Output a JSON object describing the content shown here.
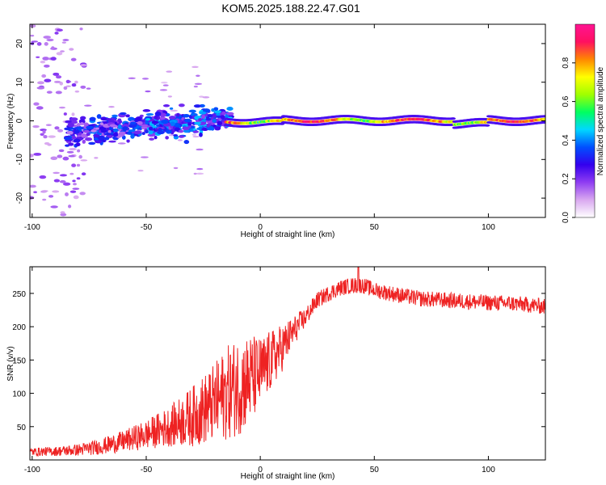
{
  "title": "KOM5.2025.188.22.47.G01",
  "chart_data": [
    {
      "type": "heatmap",
      "xlabel": "Height of straight line (km)",
      "ylabel": "Frequency (Hz)",
      "xlim": [
        -101,
        125
      ],
      "ylim": [
        -25,
        25
      ],
      "xticks": [
        -100,
        -50,
        0,
        50,
        100
      ],
      "yticks": [
        -20,
        -10,
        0,
        10,
        20
      ],
      "colorbar": {
        "label": "Normalized spectral amplitude",
        "range": [
          0.0,
          1.0
        ],
        "ticks": [
          0.0,
          0.2,
          0.4,
          0.6,
          0.8
        ],
        "colormap": [
          "#ffffff",
          "#d9a8f0",
          "#8f3df2",
          "#3300ee",
          "#0050ff",
          "#00d8ff",
          "#00ff60",
          "#a0ff00",
          "#ffff00",
          "#ff8800",
          "#ff1060",
          "#ff1493"
        ]
      },
      "features": [
        {
          "x_range": [
            -101,
            -80
          ],
          "frequency_spread_hz": [
            -25,
            25
          ],
          "amplitude": 0.15,
          "description_key": "scattered weak"
        },
        {
          "x_range": [
            -80,
            -15
          ],
          "frequency_spread_hz": [
            -8,
            4
          ],
          "amplitude": 0.25
        },
        {
          "x_range": [
            -15,
            125
          ],
          "frequency_center_hz": 0,
          "amplitude": 0.7
        }
      ]
    },
    {
      "type": "line",
      "xlabel": "Height of straight line (km)",
      "ylabel": "SNR (v/v)",
      "xlim": [
        -101,
        125
      ],
      "ylim": [
        0,
        290
      ],
      "xticks": [
        -100,
        -50,
        0,
        50,
        100
      ],
      "yticks": [
        50,
        100,
        150,
        200,
        250
      ],
      "color": "#ee2222",
      "envelope": {
        "x": [
          -101,
          -90,
          -80,
          -70,
          -60,
          -50,
          -40,
          -30,
          -20,
          -15,
          -10,
          -5,
          0,
          5,
          10,
          15,
          20,
          25,
          30,
          35,
          40,
          45,
          50,
          60,
          70,
          80,
          90,
          100,
          110,
          120,
          125
        ],
        "mean": [
          12,
          13,
          15,
          20,
          28,
          38,
          50,
          65,
          85,
          100,
          110,
          120,
          130,
          150,
          170,
          195,
          215,
          240,
          250,
          258,
          262,
          262,
          255,
          248,
          242,
          240,
          238,
          236,
          235,
          232,
          230
        ],
        "noise": [
          6,
          7,
          9,
          12,
          16,
          22,
          30,
          45,
          60,
          70,
          75,
          70,
          55,
          45,
          35,
          22,
          15,
          12,
          12,
          12,
          12,
          12,
          12,
          12,
          12,
          12,
          12,
          12,
          12,
          12,
          12
        ]
      },
      "peak_snr": 290,
      "peak_x": 43
    }
  ]
}
